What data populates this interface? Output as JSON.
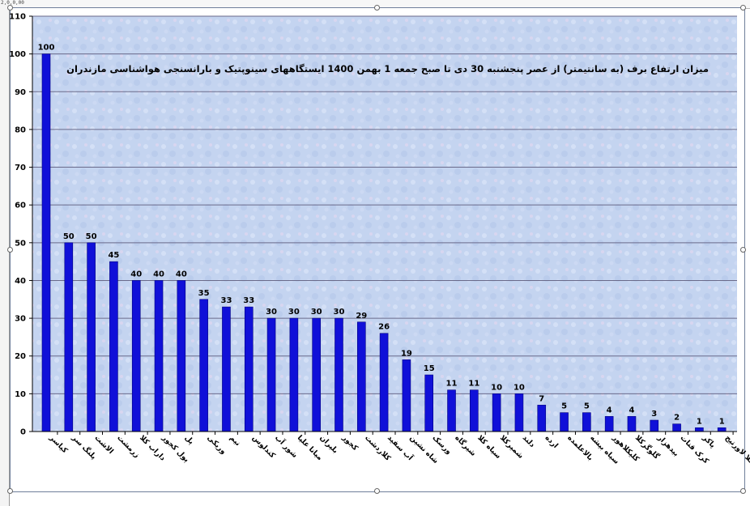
{
  "ruler": {
    "corner_label": "2,0,0,00"
  },
  "chart_data": {
    "type": "bar",
    "title": "میزان ارتفاع برف (به سانتیمتر) از عصر پنجشنبه 30 دی تا صبح جمعه 1 بهمن 1400 ایستگاههای سینوپتیک و بارانسنجی هواشناسی مازندران",
    "xlabel": "",
    "ylabel": "",
    "ylim": [
      0,
      110
    ],
    "yticks": [
      0,
      10,
      20,
      30,
      40,
      50,
      60,
      70,
      80,
      90,
      100,
      110
    ],
    "grid": true,
    "legend": "none",
    "colors": {
      "bar": "#1010d8",
      "bar_edge": "#000080",
      "plot_bg": "#c4d4f0",
      "gridline": "#6a6a8a"
    },
    "categories": [
      "کیاسر",
      "پلنگ سر",
      "الاشت",
      "زرمشت",
      "داراب کلا",
      "پول کجور",
      "پل",
      "وریکی",
      "نیم",
      "کندلوس",
      "شور آب",
      "میانا علیا",
      "بلیران",
      "کجور",
      "کلاردشت",
      "آب سفید",
      "شاه نشین",
      "ورسک",
      "شیرگاه",
      "سیاه کلا",
      "شمیرکلا",
      "دلند",
      "ارده",
      "بالاعلمده",
      "سیاه بیشه",
      "کلیکلاهور",
      "گلوگرکلا",
      "بیدهزار",
      "کرک قنات",
      "پاکر",
      "رئیس کلا لاورتیج"
    ],
    "values": [
      100,
      50,
      50,
      45,
      40,
      40,
      40,
      35,
      33,
      33,
      30,
      30,
      30,
      30,
      29,
      26,
      19,
      15,
      11,
      11,
      10,
      10,
      7,
      5,
      5,
      4,
      4,
      3,
      2,
      1,
      1
    ]
  }
}
